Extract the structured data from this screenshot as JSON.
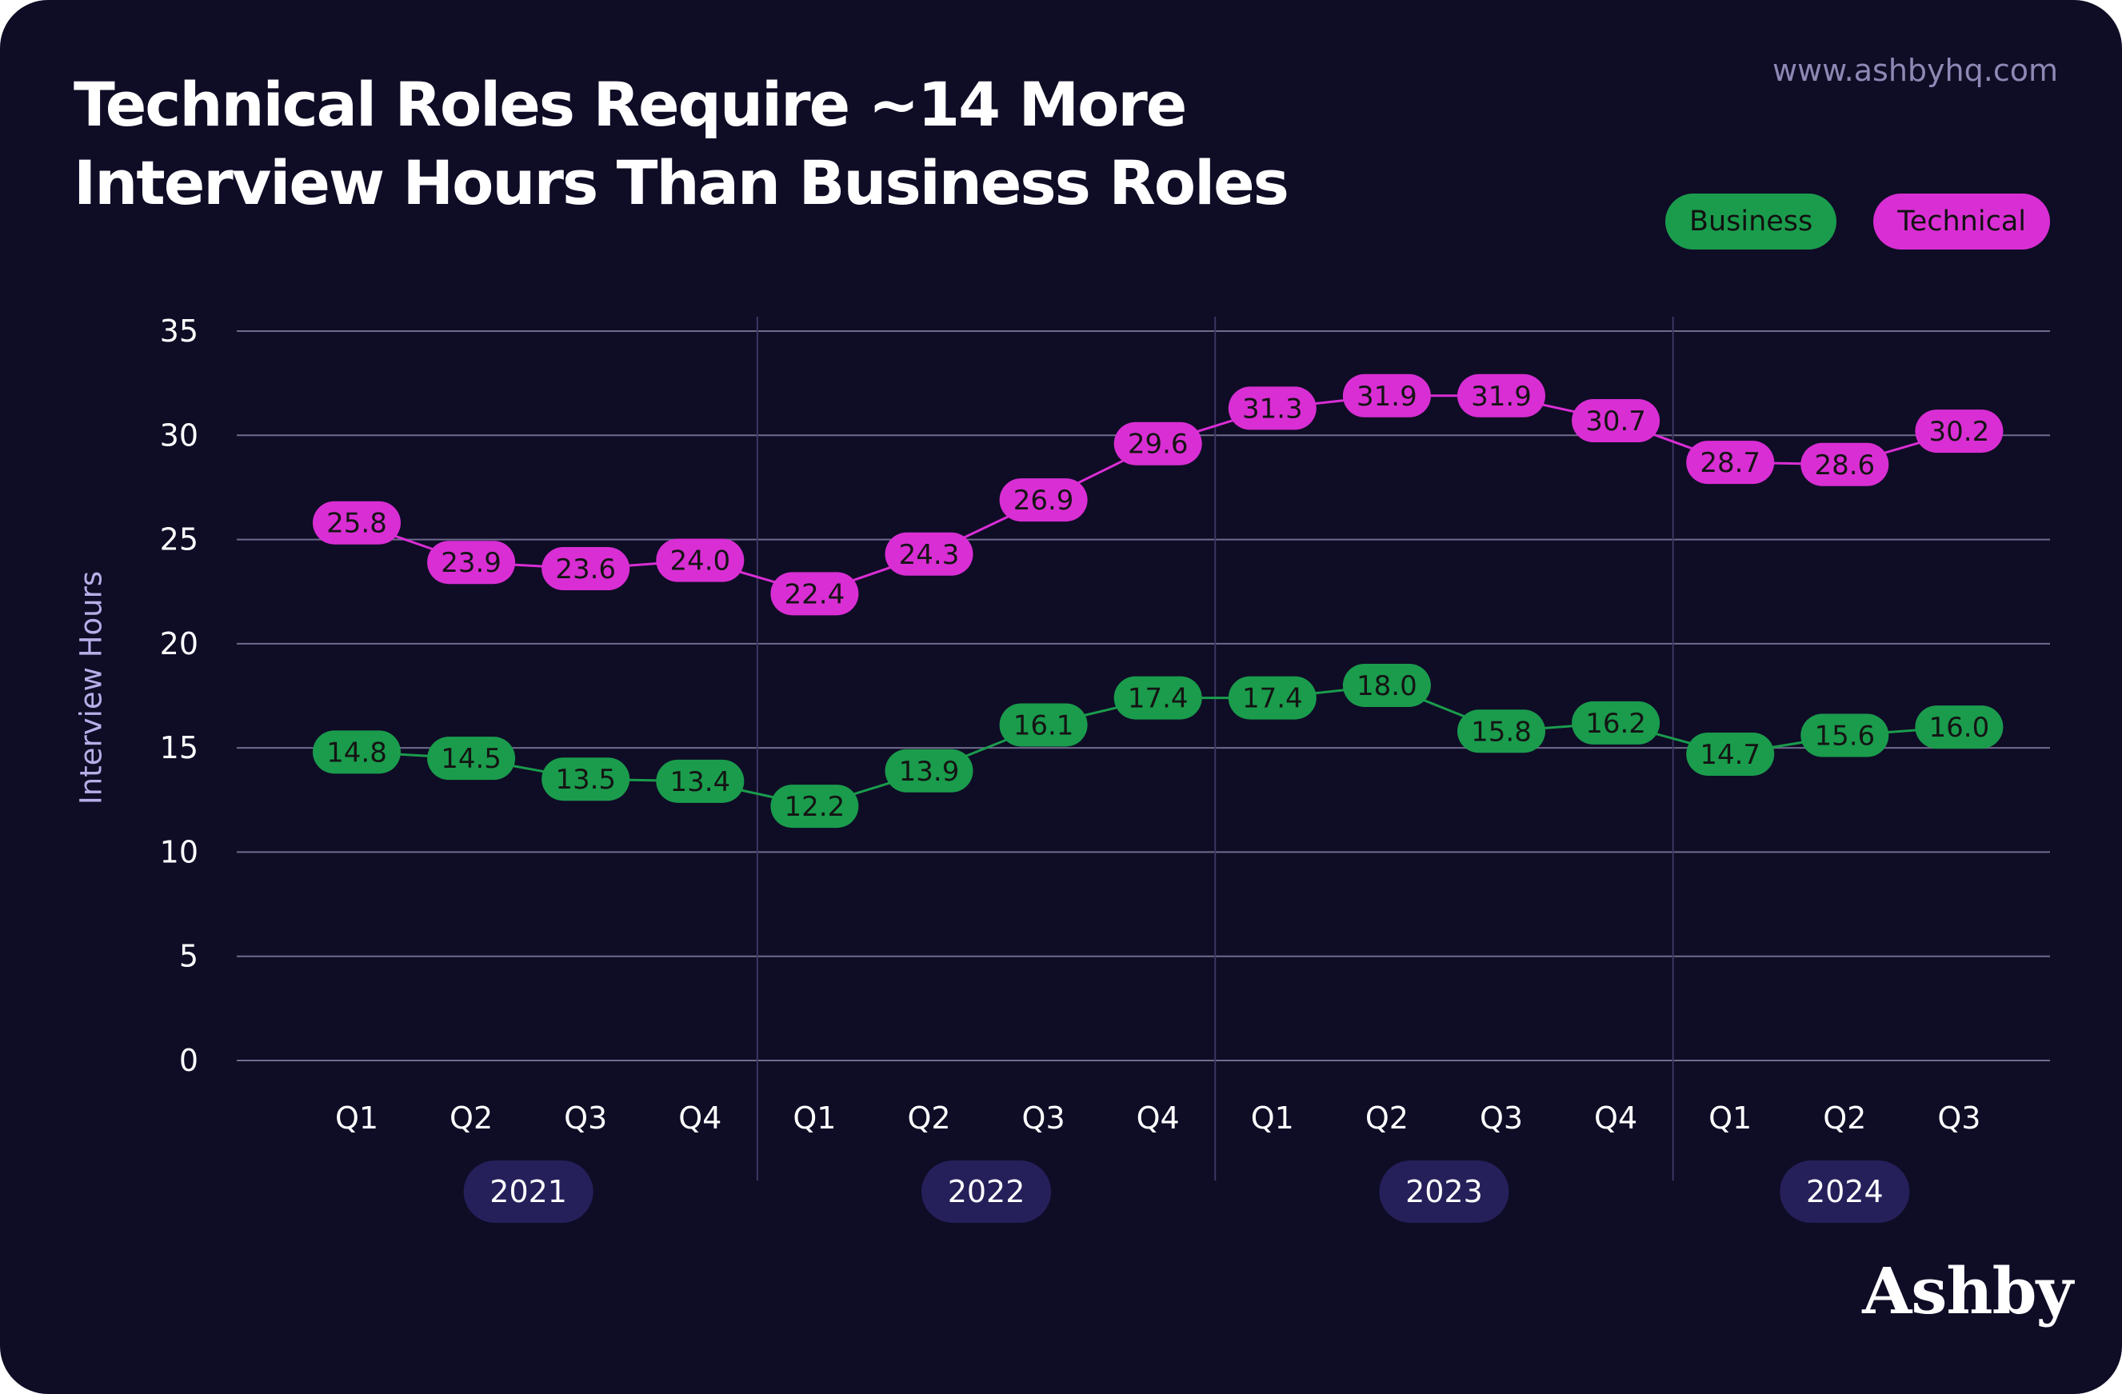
{
  "header": {
    "title_line1": "Technical Roles Require ~14 More",
    "title_line2": "Interview Hours Than Business Roles",
    "website": "www.ashbyhq.com"
  },
  "branding": {
    "logo_text": "Ashby"
  },
  "colors": {
    "background": "#0f0c26",
    "business": "#1a9c4c",
    "technical": "#d92ed4",
    "year_pill": "#25205a",
    "grid": "#6f6b8c",
    "axis_label": "#b6aee8"
  },
  "chart_data": {
    "type": "line",
    "title": "Technical Roles Require ~14 More Interview Hours Than Business Roles",
    "ylabel": "Interview Hours",
    "xlabel": "",
    "ylim": [
      0,
      35
    ],
    "yticks": [
      0,
      5,
      10,
      15,
      20,
      25,
      30,
      35
    ],
    "grid": true,
    "legend_position": "top-right",
    "categories": [
      "Q1",
      "Q2",
      "Q3",
      "Q4",
      "Q1",
      "Q2",
      "Q3",
      "Q4",
      "Q1",
      "Q2",
      "Q3",
      "Q4",
      "Q1",
      "Q2",
      "Q3"
    ],
    "year_groups": [
      {
        "label": "2021",
        "count": 4
      },
      {
        "label": "2022",
        "count": 4
      },
      {
        "label": "2023",
        "count": 4
      },
      {
        "label": "2024",
        "count": 3
      }
    ],
    "series": [
      {
        "name": "Technical",
        "color": "#d92ed4",
        "values": [
          25.8,
          23.9,
          23.6,
          24.0,
          22.4,
          24.3,
          26.9,
          29.6,
          31.3,
          31.9,
          31.9,
          30.7,
          28.7,
          28.6,
          30.2
        ],
        "labels": [
          "25.8",
          "23.9",
          "23.6",
          "24.0",
          "22.4",
          "24.3",
          "26.9",
          "29.6",
          "31.3",
          "31.9",
          "31.9",
          "30.7",
          "28.7",
          "28.6",
          "30.2"
        ]
      },
      {
        "name": "Business",
        "color": "#1a9c4c",
        "values": [
          14.8,
          14.5,
          13.5,
          13.4,
          12.2,
          13.9,
          16.1,
          17.4,
          17.4,
          18.0,
          15.8,
          16.2,
          14.7,
          15.6,
          16.0
        ],
        "labels": [
          "14.8",
          "14.5",
          "13.5",
          "13.4",
          "12.2",
          "13.9",
          "16.1",
          "17.4",
          "17.4",
          "18.0",
          "15.8",
          "16.2",
          "14.7",
          "15.6",
          "16.0"
        ]
      }
    ]
  }
}
